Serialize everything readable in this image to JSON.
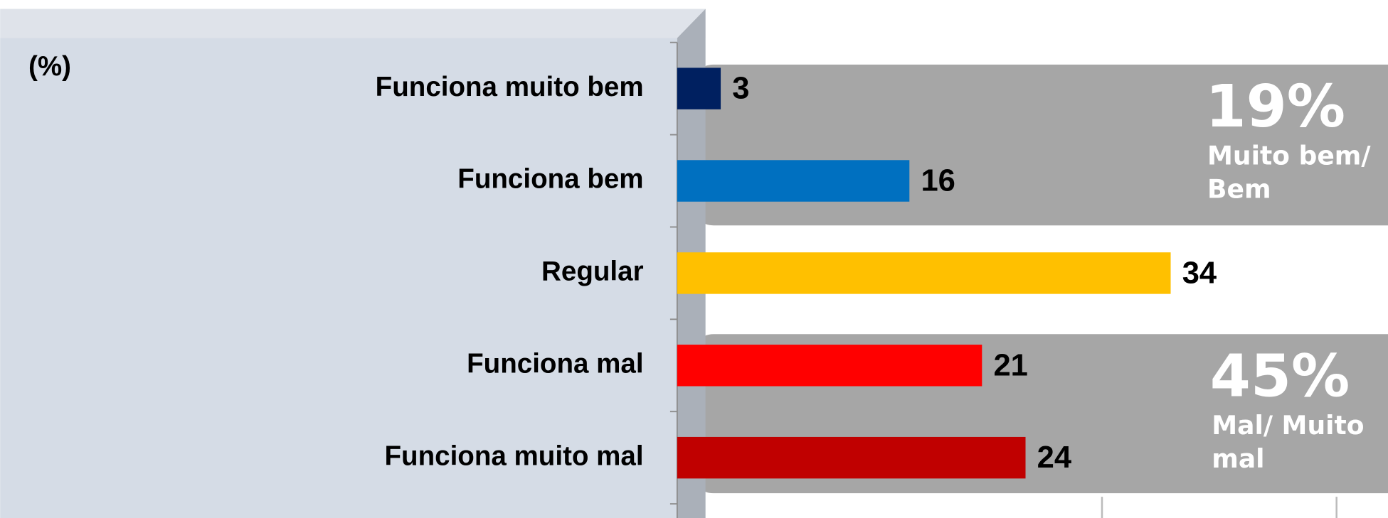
{
  "chart_data": {
    "type": "bar",
    "orientation": "horizontal",
    "unit_label": "(%)",
    "categories": [
      "Funciona muito bem",
      "Funciona bem",
      "Regular",
      "Funciona mal",
      "Funciona muito mal"
    ],
    "values": [
      3,
      16,
      34,
      21,
      24
    ],
    "colors": [
      "#002060",
      "#0070c0",
      "#ffc000",
      "#ff0000",
      "#c00000"
    ],
    "annotations": [
      {
        "text": "19%",
        "label": [
          "Muito bem/",
          "Bem"
        ]
      },
      {
        "text": "45%",
        "label": [
          "Mal/ Muito",
          "mal"
        ]
      }
    ]
  }
}
